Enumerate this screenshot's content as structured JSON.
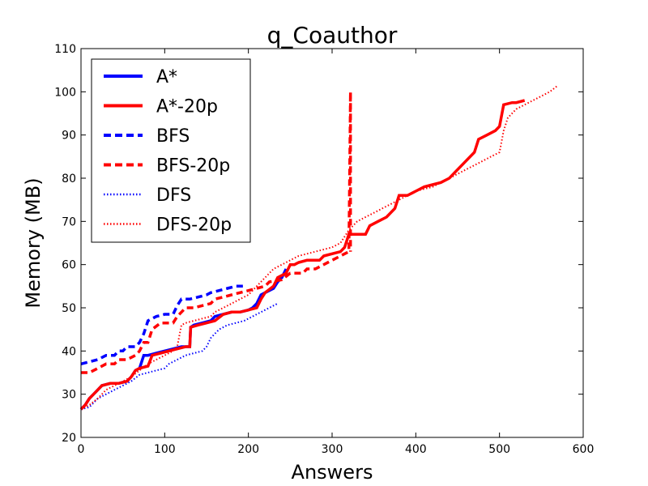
{
  "chart_data": {
    "type": "line",
    "title": "q_Coauthor",
    "xlabel": "Answers",
    "ylabel": "Memory (MB)",
    "xlim": [
      0,
      600
    ],
    "ylim": [
      20,
      110
    ],
    "xticks": [
      0,
      100,
      200,
      300,
      400,
      500,
      600
    ],
    "yticks": [
      20,
      30,
      40,
      50,
      60,
      70,
      80,
      90,
      100,
      110
    ],
    "grid": false,
    "legend_position": "top-left",
    "series": [
      {
        "name": "A*",
        "color": "#0000ff",
        "style": "solid",
        "points": [
          [
            0,
            26.5
          ],
          [
            5,
            27.5
          ],
          [
            10,
            29
          ],
          [
            15,
            30
          ],
          [
            20,
            31
          ],
          [
            25,
            32
          ],
          [
            35,
            32.5
          ],
          [
            45,
            32.5
          ],
          [
            55,
            33
          ],
          [
            60,
            34
          ],
          [
            65,
            35.5
          ],
          [
            70,
            36
          ],
          [
            75,
            39
          ],
          [
            80,
            39
          ],
          [
            90,
            39.5
          ],
          [
            100,
            40
          ],
          [
            110,
            40.5
          ],
          [
            120,
            41
          ],
          [
            130,
            41
          ],
          [
            131,
            45.5
          ],
          [
            135,
            46
          ],
          [
            145,
            46.5
          ],
          [
            155,
            47
          ],
          [
            160,
            48
          ],
          [
            170,
            48.5
          ],
          [
            180,
            49
          ],
          [
            190,
            49
          ],
          [
            200,
            49.5
          ],
          [
            205,
            50
          ],
          [
            210,
            51
          ],
          [
            215,
            53
          ],
          [
            220,
            53.5
          ],
          [
            230,
            54.5
          ],
          [
            235,
            56
          ],
          [
            240,
            57
          ],
          [
            245,
            59
          ]
        ]
      },
      {
        "name": "A*-20p",
        "color": "#ff0000",
        "style": "solid",
        "points": [
          [
            0,
            26.5
          ],
          [
            5,
            27.5
          ],
          [
            10,
            29
          ],
          [
            15,
            30
          ],
          [
            20,
            31
          ],
          [
            25,
            32
          ],
          [
            35,
            32.5
          ],
          [
            45,
            32.5
          ],
          [
            55,
            33
          ],
          [
            60,
            34
          ],
          [
            65,
            35.5
          ],
          [
            70,
            36
          ],
          [
            80,
            36.5
          ],
          [
            85,
            39
          ],
          [
            95,
            39.5
          ],
          [
            105,
            40
          ],
          [
            115,
            40.5
          ],
          [
            125,
            41
          ],
          [
            130,
            41
          ],
          [
            131,
            45.5
          ],
          [
            140,
            46
          ],
          [
            150,
            46.5
          ],
          [
            160,
            47
          ],
          [
            170,
            48.5
          ],
          [
            180,
            49
          ],
          [
            190,
            49
          ],
          [
            200,
            49.5
          ],
          [
            210,
            50
          ],
          [
            215,
            52
          ],
          [
            220,
            53.5
          ],
          [
            230,
            55
          ],
          [
            235,
            57
          ],
          [
            245,
            58
          ],
          [
            250,
            60
          ],
          [
            255,
            60
          ],
          [
            260,
            60.5
          ],
          [
            270,
            61
          ],
          [
            285,
            61
          ],
          [
            290,
            62
          ],
          [
            300,
            62.5
          ],
          [
            310,
            63
          ],
          [
            315,
            64
          ],
          [
            320,
            67
          ],
          [
            340,
            67
          ],
          [
            345,
            69
          ],
          [
            355,
            70
          ],
          [
            365,
            71
          ],
          [
            375,
            73
          ],
          [
            380,
            76
          ],
          [
            390,
            76
          ],
          [
            400,
            77
          ],
          [
            410,
            78
          ],
          [
            420,
            78.5
          ],
          [
            430,
            79
          ],
          [
            440,
            80
          ],
          [
            450,
            82
          ],
          [
            460,
            84
          ],
          [
            470,
            86
          ],
          [
            475,
            89
          ],
          [
            485,
            90
          ],
          [
            495,
            91
          ],
          [
            500,
            92
          ],
          [
            505,
            97
          ],
          [
            515,
            97.5
          ],
          [
            520,
            97.5
          ],
          [
            530,
            98
          ]
        ]
      },
      {
        "name": "BFS",
        "color": "#0000ff",
        "style": "dashed",
        "points": [
          [
            0,
            37
          ],
          [
            10,
            37.5
          ],
          [
            20,
            38
          ],
          [
            30,
            39
          ],
          [
            40,
            39
          ],
          [
            45,
            40
          ],
          [
            50,
            40
          ],
          [
            55,
            41
          ],
          [
            65,
            41
          ],
          [
            70,
            42
          ],
          [
            75,
            44
          ],
          [
            80,
            47
          ],
          [
            90,
            48
          ],
          [
            100,
            48.5
          ],
          [
            110,
            48.5
          ],
          [
            115,
            50.5
          ],
          [
            120,
            52
          ],
          [
            130,
            52
          ],
          [
            140,
            52.5
          ],
          [
            150,
            53
          ],
          [
            155,
            53.5
          ],
          [
            165,
            54
          ],
          [
            175,
            54.5
          ],
          [
            185,
            55
          ],
          [
            195,
            55
          ]
        ]
      },
      {
        "name": "BFS-20p",
        "color": "#ff0000",
        "style": "dashed",
        "points": [
          [
            0,
            35
          ],
          [
            10,
            35
          ],
          [
            20,
            36
          ],
          [
            30,
            37
          ],
          [
            40,
            37
          ],
          [
            45,
            38
          ],
          [
            55,
            38
          ],
          [
            65,
            39
          ],
          [
            70,
            40
          ],
          [
            75,
            42
          ],
          [
            80,
            42
          ],
          [
            85,
            45
          ],
          [
            95,
            46.5
          ],
          [
            110,
            46.5
          ],
          [
            115,
            48
          ],
          [
            125,
            50
          ],
          [
            135,
            50
          ],
          [
            145,
            50.5
          ],
          [
            155,
            51
          ],
          [
            160,
            52
          ],
          [
            170,
            52.5
          ],
          [
            180,
            53
          ],
          [
            190,
            53.5
          ],
          [
            200,
            54
          ],
          [
            210,
            54.5
          ],
          [
            220,
            55
          ],
          [
            225,
            56
          ],
          [
            240,
            56.5
          ],
          [
            250,
            58
          ],
          [
            265,
            58
          ],
          [
            270,
            59
          ],
          [
            280,
            59
          ],
          [
            290,
            60
          ],
          [
            300,
            61
          ],
          [
            310,
            62
          ],
          [
            320,
            63
          ],
          [
            322,
            100
          ],
          [
            322,
            63
          ]
        ]
      },
      {
        "name": "DFS",
        "color": "#0000ff",
        "style": "dotted",
        "points": [
          [
            0,
            26.5
          ],
          [
            10,
            27
          ],
          [
            20,
            29
          ],
          [
            30,
            30
          ],
          [
            40,
            31
          ],
          [
            50,
            32
          ],
          [
            60,
            33
          ],
          [
            70,
            34.5
          ],
          [
            80,
            35
          ],
          [
            90,
            35.5
          ],
          [
            100,
            36
          ],
          [
            105,
            37
          ],
          [
            115,
            38
          ],
          [
            125,
            39
          ],
          [
            135,
            39.5
          ],
          [
            145,
            40
          ],
          [
            150,
            41
          ],
          [
            155,
            43
          ],
          [
            160,
            44
          ],
          [
            165,
            45
          ],
          [
            175,
            46
          ],
          [
            185,
            46.5
          ],
          [
            195,
            47
          ],
          [
            205,
            48
          ],
          [
            215,
            49
          ],
          [
            225,
            50
          ],
          [
            235,
            51
          ]
        ]
      },
      {
        "name": "DFS-20p",
        "color": "#ff0000",
        "style": "dotted",
        "points": [
          [
            0,
            26.5
          ],
          [
            10,
            27.5
          ],
          [
            20,
            29
          ],
          [
            30,
            31
          ],
          [
            40,
            32
          ],
          [
            50,
            33
          ],
          [
            60,
            34
          ],
          [
            70,
            35.5
          ],
          [
            80,
            37
          ],
          [
            90,
            38
          ],
          [
            100,
            39
          ],
          [
            110,
            40
          ],
          [
            115,
            41
          ],
          [
            120,
            46
          ],
          [
            125,
            46.5
          ],
          [
            135,
            47
          ],
          [
            145,
            47.5
          ],
          [
            155,
            48
          ],
          [
            160,
            49
          ],
          [
            170,
            50
          ],
          [
            180,
            51
          ],
          [
            190,
            52
          ],
          [
            200,
            53
          ],
          [
            210,
            55
          ],
          [
            220,
            57
          ],
          [
            230,
            59
          ],
          [
            240,
            60
          ],
          [
            250,
            61
          ],
          [
            260,
            62
          ],
          [
            270,
            62.5
          ],
          [
            280,
            63
          ],
          [
            290,
            63.5
          ],
          [
            300,
            64
          ],
          [
            310,
            65
          ],
          [
            320,
            68
          ],
          [
            330,
            70
          ],
          [
            340,
            71
          ],
          [
            350,
            72
          ],
          [
            360,
            73
          ],
          [
            370,
            74
          ],
          [
            380,
            75
          ],
          [
            390,
            76
          ],
          [
            400,
            77
          ],
          [
            410,
            77.5
          ],
          [
            420,
            78
          ],
          [
            430,
            79
          ],
          [
            440,
            80
          ],
          [
            450,
            81
          ],
          [
            460,
            82
          ],
          [
            470,
            83
          ],
          [
            480,
            84
          ],
          [
            490,
            85
          ],
          [
            500,
            86
          ],
          [
            505,
            91
          ],
          [
            510,
            94
          ],
          [
            515,
            95
          ],
          [
            520,
            96
          ],
          [
            530,
            97
          ],
          [
            540,
            98
          ],
          [
            550,
            99
          ],
          [
            560,
            100
          ],
          [
            570,
            101.5
          ]
        ]
      }
    ]
  }
}
